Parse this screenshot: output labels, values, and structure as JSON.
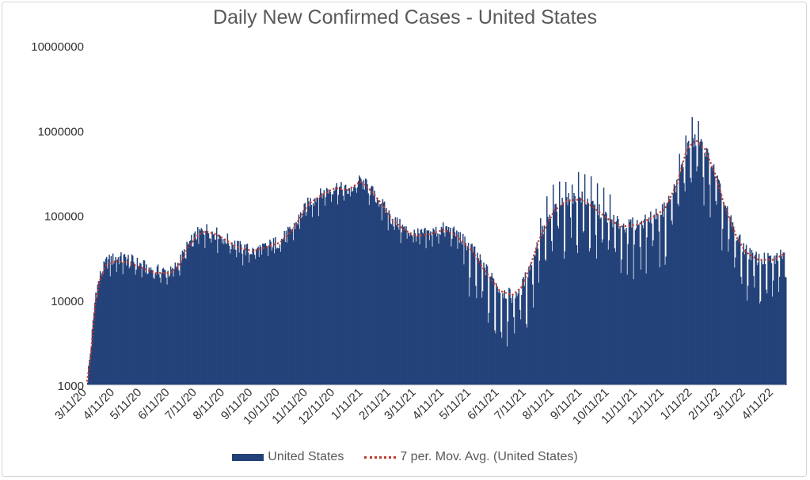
{
  "chart_data": {
    "type": "bar",
    "title": "Daily New Confirmed Cases - United States",
    "xlabel": "",
    "ylabel": "",
    "y_scale": "log",
    "ylim": [
      1000,
      10000000
    ],
    "y_ticks": [
      "1000",
      "10000",
      "100000",
      "1000000",
      "10000000"
    ],
    "x_ticks": [
      "3/11/20",
      "4/11/20",
      "5/11/20",
      "6/11/20",
      "7/11/20",
      "8/11/20",
      "9/11/20",
      "10/11/20",
      "11/11/20",
      "12/11/20",
      "1/11/21",
      "2/11/21",
      "3/11/21",
      "4/11/21",
      "5/11/21",
      "6/11/21",
      "7/11/21",
      "8/11/21",
      "9/11/21",
      "10/11/21",
      "11/11/21",
      "12/11/21",
      "1/11/22",
      "2/11/22",
      "3/11/22",
      "4/11/22"
    ],
    "x_range": [
      "2020-03-11",
      "2022-04-24"
    ],
    "grid": "none",
    "legend_position": "bottom",
    "colors": {
      "bars": "#24427a",
      "moving_average": "#c0392b"
    },
    "series": [
      {
        "name": "United States",
        "kind": "bar",
        "date_points": [
          [
            "2020-03-11",
            1200
          ],
          [
            "2020-03-15",
            3000
          ],
          [
            "2020-03-20",
            12000
          ],
          [
            "2020-03-25",
            19000
          ],
          [
            "2020-04-01",
            28000
          ],
          [
            "2020-04-11",
            31000
          ],
          [
            "2020-04-25",
            30000
          ],
          [
            "2020-05-11",
            25000
          ],
          [
            "2020-05-25",
            22000
          ],
          [
            "2020-06-11",
            21000
          ],
          [
            "2020-06-20",
            27000
          ],
          [
            "2020-07-01",
            45000
          ],
          [
            "2020-07-11",
            60000
          ],
          [
            "2020-07-20",
            68000
          ],
          [
            "2020-08-01",
            60000
          ],
          [
            "2020-08-11",
            52000
          ],
          [
            "2020-08-25",
            42000
          ],
          [
            "2020-09-11",
            37000
          ],
          [
            "2020-09-25",
            42000
          ],
          [
            "2020-10-11",
            50000
          ],
          [
            "2020-10-25",
            70000
          ],
          [
            "2020-11-11",
            140000
          ],
          [
            "2020-11-25",
            175000
          ],
          [
            "2020-12-11",
            215000
          ],
          [
            "2020-12-25",
            190000
          ],
          [
            "2021-01-08",
            260000
          ],
          [
            "2021-01-20",
            190000
          ],
          [
            "2021-02-01",
            130000
          ],
          [
            "2021-02-11",
            90000
          ],
          [
            "2021-02-25",
            68000
          ],
          [
            "2021-03-11",
            58000
          ],
          [
            "2021-03-25",
            60000
          ],
          [
            "2021-04-11",
            70000
          ],
          [
            "2021-04-25",
            58000
          ],
          [
            "2021-05-11",
            40000
          ],
          [
            "2021-05-25",
            24000
          ],
          [
            "2021-06-11",
            13000
          ],
          [
            "2021-06-25",
            11000
          ],
          [
            "2021-07-05",
            14000
          ],
          [
            "2021-07-15",
            26000
          ],
          [
            "2021-07-25",
            55000
          ],
          [
            "2021-08-11",
            120000
          ],
          [
            "2021-08-25",
            155000
          ],
          [
            "2021-09-11",
            160000
          ],
          [
            "2021-09-25",
            120000
          ],
          [
            "2021-10-11",
            90000
          ],
          [
            "2021-10-25",
            75000
          ],
          [
            "2021-11-11",
            80000
          ],
          [
            "2021-11-25",
            95000
          ],
          [
            "2021-12-11",
            120000
          ],
          [
            "2021-12-25",
            250000
          ],
          [
            "2022-01-05",
            650000
          ],
          [
            "2022-01-15",
            780000
          ],
          [
            "2022-01-25",
            580000
          ],
          [
            "2022-02-05",
            300000
          ],
          [
            "2022-02-15",
            130000
          ],
          [
            "2022-03-01",
            55000
          ],
          [
            "2022-03-11",
            38000
          ],
          [
            "2022-03-25",
            30000
          ],
          [
            "2022-04-11",
            30000
          ],
          [
            "2022-04-24",
            40000
          ]
        ]
      },
      {
        "name": "7 per. Mov. Avg. (United States)",
        "kind": "line",
        "date_points": [
          [
            "2020-03-11",
            1100
          ],
          [
            "2020-03-15",
            2200
          ],
          [
            "2020-03-20",
            9000
          ],
          [
            "2020-03-25",
            17000
          ],
          [
            "2020-04-01",
            26000
          ],
          [
            "2020-04-11",
            29000
          ],
          [
            "2020-04-25",
            28000
          ],
          [
            "2020-05-11",
            24000
          ],
          [
            "2020-05-25",
            21000
          ],
          [
            "2020-06-11",
            21000
          ],
          [
            "2020-06-20",
            25000
          ],
          [
            "2020-07-01",
            42000
          ],
          [
            "2020-07-11",
            58000
          ],
          [
            "2020-07-20",
            65000
          ],
          [
            "2020-08-01",
            60000
          ],
          [
            "2020-08-11",
            52000
          ],
          [
            "2020-08-25",
            42000
          ],
          [
            "2020-09-11",
            38000
          ],
          [
            "2020-09-25",
            42000
          ],
          [
            "2020-10-11",
            48000
          ],
          [
            "2020-10-25",
            68000
          ],
          [
            "2020-11-11",
            135000
          ],
          [
            "2020-11-25",
            172000
          ],
          [
            "2020-12-11",
            210000
          ],
          [
            "2020-12-25",
            200000
          ],
          [
            "2021-01-08",
            250000
          ],
          [
            "2021-01-20",
            195000
          ],
          [
            "2021-02-01",
            135000
          ],
          [
            "2021-02-11",
            92000
          ],
          [
            "2021-02-25",
            68000
          ],
          [
            "2021-03-11",
            57000
          ],
          [
            "2021-03-25",
            60000
          ],
          [
            "2021-04-11",
            68000
          ],
          [
            "2021-04-25",
            57000
          ],
          [
            "2021-05-11",
            39000
          ],
          [
            "2021-05-25",
            23000
          ],
          [
            "2021-06-11",
            13000
          ],
          [
            "2021-06-25",
            11500
          ],
          [
            "2021-07-05",
            14000
          ],
          [
            "2021-07-15",
            25000
          ],
          [
            "2021-07-25",
            52000
          ],
          [
            "2021-08-11",
            115000
          ],
          [
            "2021-08-25",
            150000
          ],
          [
            "2021-09-11",
            155000
          ],
          [
            "2021-09-25",
            120000
          ],
          [
            "2021-10-11",
            88000
          ],
          [
            "2021-10-25",
            74000
          ],
          [
            "2021-11-11",
            78000
          ],
          [
            "2021-11-25",
            92000
          ],
          [
            "2021-12-11",
            118000
          ],
          [
            "2021-12-25",
            240000
          ],
          [
            "2022-01-05",
            620000
          ],
          [
            "2022-01-15",
            770000
          ],
          [
            "2022-01-25",
            600000
          ],
          [
            "2022-02-05",
            310000
          ],
          [
            "2022-02-15",
            135000
          ],
          [
            "2022-03-01",
            55000
          ],
          [
            "2022-03-11",
            37000
          ],
          [
            "2022-03-25",
            30000
          ],
          [
            "2022-04-11",
            30000
          ],
          [
            "2022-04-24",
            36000
          ]
        ]
      }
    ]
  }
}
